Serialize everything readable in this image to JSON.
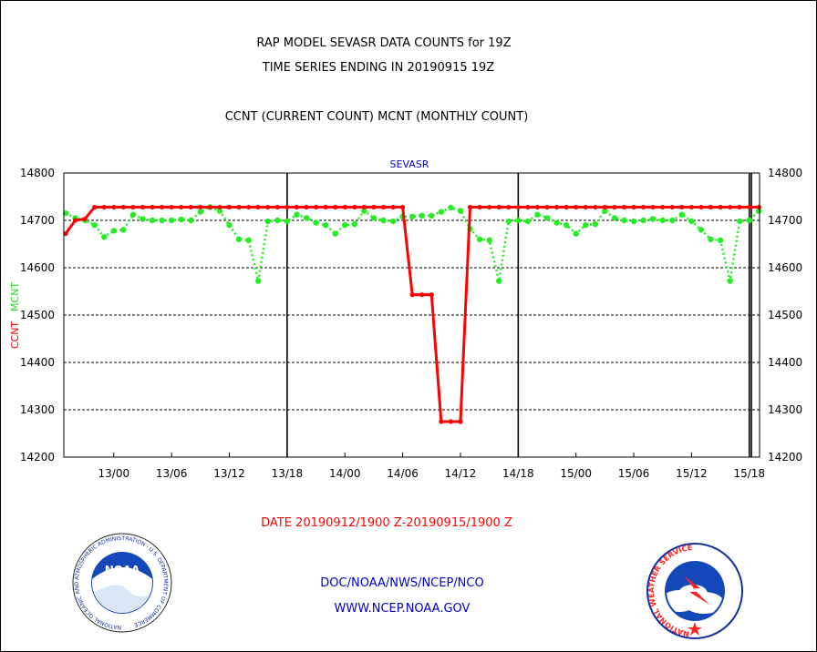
{
  "chart_data": {
    "type": "line",
    "title": "RAP MODEL SEVASR DATA COUNTS for 19Z",
    "subtitle": "TIME SERIES ENDING IN 20190915 19Z",
    "description": "CCNT (CURRENT COUNT) MCNT (MONTHLY COUNT)",
    "panel_label": "SEVASR",
    "ylabel_ccnt": "CCNT",
    "ylabel_mcnt": "MCNT",
    "ylim": [
      14200,
      14800
    ],
    "yticks": [
      14200,
      14300,
      14400,
      14500,
      14600,
      14700,
      14800
    ],
    "xticks": [
      "13/00",
      "13/06",
      "13/12",
      "13/18",
      "14/00",
      "14/06",
      "14/12",
      "14/18",
      "15/00",
      "15/06",
      "15/12",
      "15/18"
    ],
    "date_range": "DATE 20190912/1900 Z-20190915/1900 Z",
    "grid": true,
    "colors": {
      "ccnt": "#ff0000",
      "mcnt": "#22ee22",
      "text": "#000000",
      "credit": "#0000cc"
    },
    "series": [
      {
        "name": "CCNT",
        "x": [
          0,
          1,
          2,
          3,
          4,
          5,
          6,
          7,
          8,
          9,
          10,
          11,
          12,
          13,
          14,
          15,
          16,
          17,
          18,
          19,
          20,
          21,
          22,
          23,
          24,
          25,
          26,
          27,
          28,
          29,
          30,
          31,
          32,
          33,
          34,
          35,
          36,
          37,
          38,
          39,
          40,
          41,
          42,
          43,
          44,
          45,
          46,
          47,
          48,
          49,
          50,
          51,
          52,
          53,
          54,
          55,
          56,
          57,
          58,
          59,
          60,
          61,
          62,
          63,
          64,
          65,
          66,
          67,
          68,
          69,
          70,
          71,
          72
        ],
        "values": [
          14672,
          14700,
          14703,
          14728,
          14728,
          14728,
          14728,
          14728,
          14728,
          14728,
          14728,
          14728,
          14728,
          14728,
          14728,
          14728,
          14728,
          14728,
          14728,
          14728,
          14728,
          14728,
          14728,
          14728,
          14728,
          14728,
          14728,
          14728,
          14728,
          14728,
          14728,
          14728,
          14728,
          14728,
          14728,
          14728,
          14543,
          14543,
          14543,
          14275,
          14275,
          14275,
          14728,
          14728,
          14728,
          14728,
          14728,
          14728,
          14728,
          14728,
          14728,
          14728,
          14728,
          14728,
          14728,
          14728,
          14728,
          14728,
          14728,
          14728,
          14728,
          14728,
          14728,
          14728,
          14728,
          14728,
          14728,
          14728,
          14728,
          14728,
          14728,
          14728,
          14728
        ]
      },
      {
        "name": "MCNT",
        "x": [
          0,
          1,
          2,
          3,
          4,
          5,
          6,
          7,
          8,
          9,
          10,
          11,
          12,
          13,
          14,
          15,
          16,
          17,
          18,
          19,
          20,
          21,
          22,
          23,
          24,
          25,
          26,
          27,
          28,
          29,
          30,
          31,
          32,
          33,
          34,
          35,
          36,
          37,
          38,
          39,
          40,
          41,
          42,
          43,
          44,
          45,
          46,
          47,
          48,
          49,
          50,
          51,
          52,
          53,
          54,
          55,
          56,
          57,
          58,
          59,
          60,
          61,
          62,
          63,
          64,
          65,
          66,
          67,
          68,
          69,
          70,
          71,
          72
        ],
        "values": [
          14715,
          14705,
          14700,
          14690,
          14665,
          14678,
          14680,
          14712,
          14703,
          14700,
          14700,
          14700,
          14702,
          14700,
          14718,
          14728,
          14720,
          14690,
          14660,
          14658,
          14572,
          14698,
          14700,
          14698,
          14712,
          14705,
          14695,
          14690,
          14672,
          14690,
          14692,
          14720,
          14705,
          14700,
          14698,
          14708,
          14708,
          14710,
          14710,
          14718,
          14727,
          14720,
          14682,
          14660,
          14658,
          14572,
          14698,
          14700,
          14698,
          14712,
          14705,
          14695,
          14690,
          14672,
          14690,
          14692,
          14720,
          14705,
          14700,
          14698,
          14700,
          14703,
          14700,
          14700,
          14712,
          14698,
          14680,
          14660,
          14658,
          14572,
          14698,
          14700,
          14720
        ]
      }
    ]
  },
  "credits": {
    "line1": "DOC/NOAA/NWS/NCEP/NCO",
    "line2": "WWW.NCEP.NOAA.GOV"
  },
  "logos": {
    "noaa_center": "NOAA",
    "noaa_ring": "NATIONAL OCEANIC AND ATMOSPHERIC ADMINISTRATION · U.S. DEPARTMENT OF COMMERCE",
    "nws_ring": "NATIONAL WEATHER SERVICE"
  }
}
